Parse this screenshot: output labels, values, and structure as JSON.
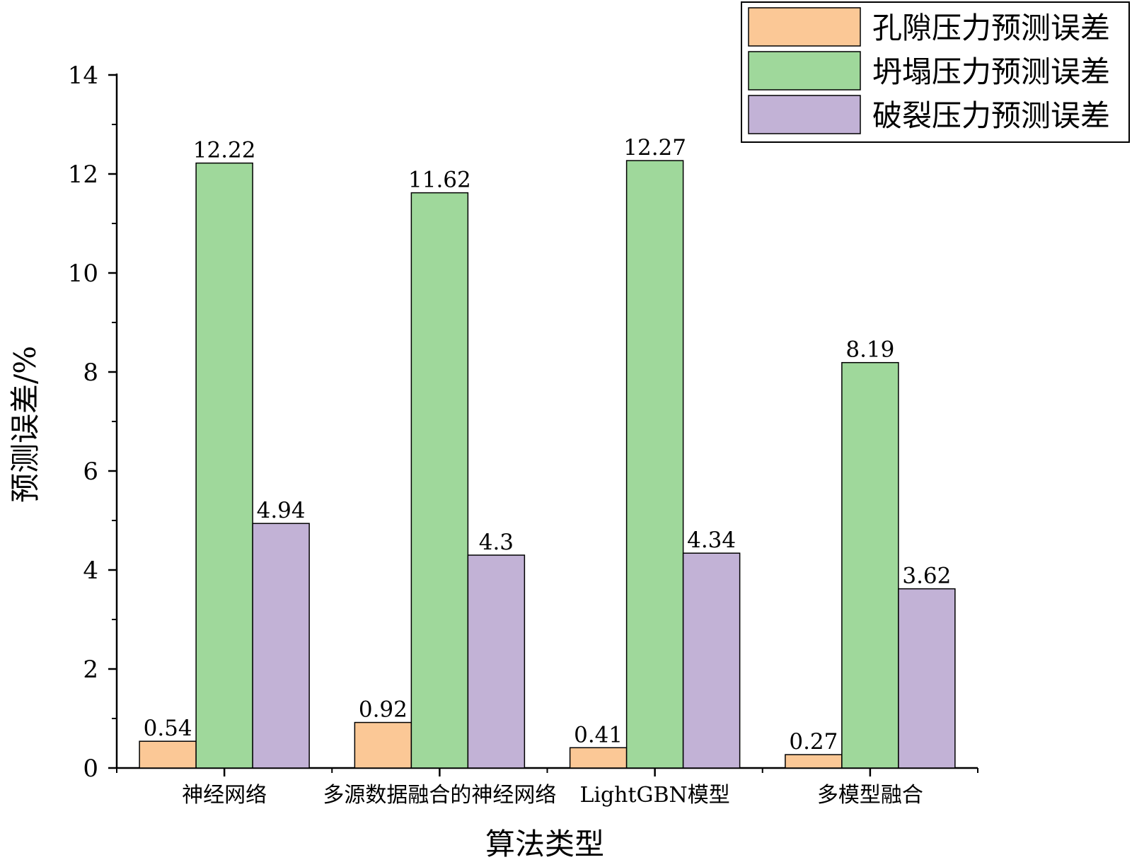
{
  "chart_data": {
    "type": "bar",
    "title": "",
    "xlabel": "算法类型",
    "ylabel": "预测误差/%",
    "ylim": [
      0,
      14
    ],
    "yticks": [
      0,
      2,
      4,
      6,
      8,
      10,
      12,
      14
    ],
    "grid": false,
    "legend_position": "top-right",
    "categories": [
      "神经网络",
      "多源数据融合的神经网络",
      "LightGBN模型",
      "多模型融合"
    ],
    "series": [
      {
        "name": "孔隙压力预测误差",
        "color": "#FBC896",
        "values": [
          0.54,
          0.92,
          0.41,
          0.27
        ],
        "labels": [
          "0.54",
          "0.92",
          "0.41",
          "0.27"
        ]
      },
      {
        "name": "坍塌压力预测误差",
        "color": "#9FD89B",
        "values": [
          12.22,
          11.62,
          12.27,
          8.19
        ],
        "labels": [
          "12.22",
          "11.62",
          "12.27",
          "8.19"
        ]
      },
      {
        "name": "破裂压力预测误差",
        "color": "#C2B2D6",
        "values": [
          4.94,
          4.3,
          4.34,
          3.62
        ],
        "labels": [
          "4.94",
          "4.3",
          "4.34",
          "3.62"
        ]
      }
    ]
  }
}
